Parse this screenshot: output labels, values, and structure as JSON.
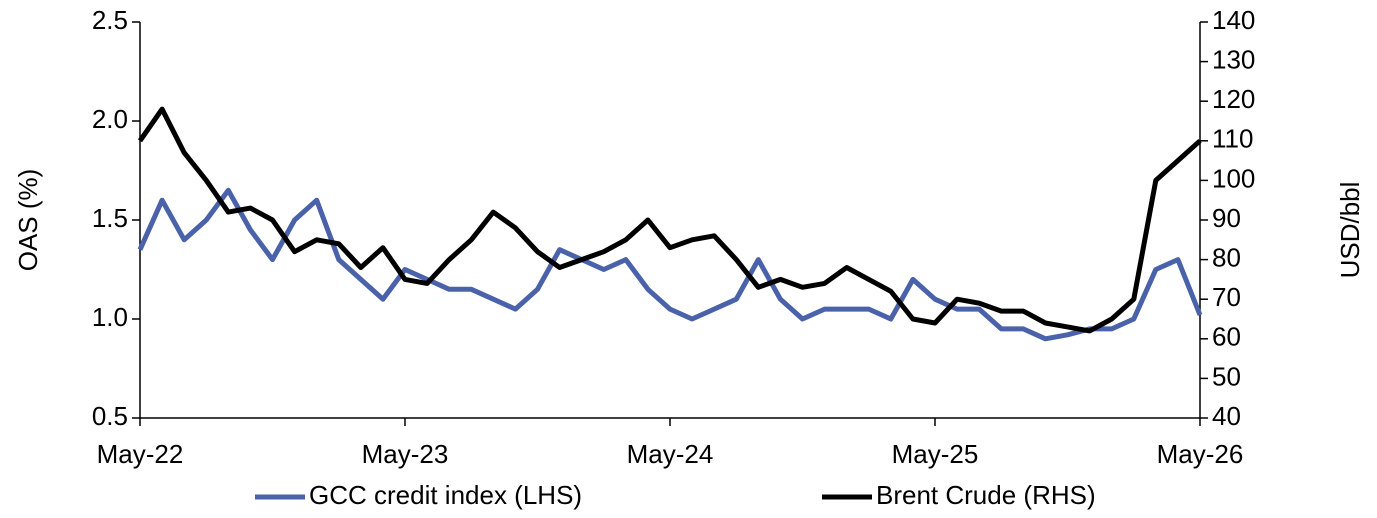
{
  "chart_data": {
    "type": "line",
    "y_label": "OAS (%)",
    "y2_label": "USD/bbl",
    "categories": [
      "May-22",
      null,
      null,
      null,
      null,
      null,
      null,
      null,
      null,
      null,
      null,
      null,
      "May-23",
      null,
      null,
      null,
      null,
      null,
      null,
      null,
      null,
      null,
      null,
      null,
      "May-24",
      null,
      null,
      null,
      null,
      null,
      null,
      null,
      null,
      null,
      null,
      null,
      "May-25",
      null,
      null,
      null,
      null,
      null,
      null,
      null,
      null,
      null,
      null,
      null,
      "May-26"
    ],
    "series": [
      {
        "name": "GCC credit index (LHS)",
        "color": "#4a62aa",
        "values": [
          1.35,
          1.6,
          1.4,
          1.5,
          1.65,
          1.45,
          1.3,
          1.5,
          1.6,
          1.3,
          1.2,
          1.1,
          1.25,
          1.2,
          1.15,
          1.15,
          1.1,
          1.05,
          1.15,
          1.35,
          1.3,
          1.25,
          1.3,
          1.15,
          1.05,
          1.0,
          1.05,
          1.1,
          1.3,
          1.1,
          1.0,
          1.05,
          1.05,
          1.05,
          1.0,
          1.2,
          1.1,
          1.05,
          1.05,
          0.95,
          0.95,
          0.9,
          0.92,
          0.95,
          0.95,
          1.0,
          1.25,
          1.3,
          1.02
        ]
      },
      {
        "name": "Brent Crude (RHS)",
        "color": "#000000",
        "axis": "y2",
        "values": [
          110,
          118,
          107,
          100,
          92,
          93,
          90,
          82,
          85,
          84,
          78,
          83,
          75,
          74,
          80,
          85,
          92,
          88,
          82,
          78,
          80,
          82,
          85,
          90,
          83,
          85,
          86,
          80,
          73,
          75,
          73,
          74,
          78,
          75,
          72,
          65,
          64,
          70,
          69,
          67,
          67,
          64,
          63,
          62,
          65,
          70,
          100,
          105,
          110
        ]
      }
    ],
    "ylim": [
      0.5,
      2.5
    ],
    "yticks": [
      0.5,
      {
        "value": 1.0,
        "label": "1.0"
      },
      1.5,
      {
        "value": 2.0,
        "label": "2.0"
      },
      2.5
    ],
    "y2lim": [
      40,
      140
    ],
    "y2ticks": [
      40,
      50,
      60,
      70,
      80,
      90,
      100,
      110,
      120,
      130,
      140
    ],
    "grid": false,
    "legend": "bottom"
  }
}
